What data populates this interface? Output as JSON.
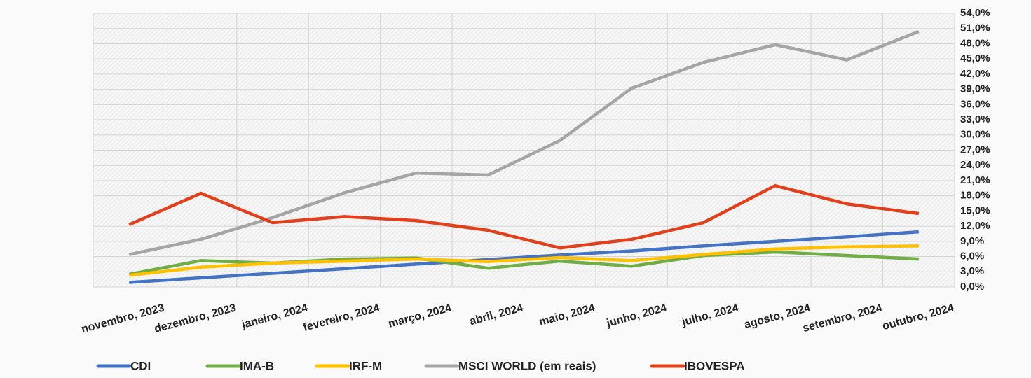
{
  "chart_data": {
    "type": "line",
    "categories": [
      "novembro, 2023",
      "dezembro, 2023",
      "janeiro, 2024",
      "fevereiro, 2024",
      "março, 2024",
      "abril, 2024",
      "maio, 2024",
      "junho, 2024",
      "julho, 2024",
      "agosto, 2024",
      "setembro, 2024",
      "outubro, 2024"
    ],
    "series": [
      {
        "name": "CDI",
        "color": "#4472c4",
        "values": [
          0.9,
          1.8,
          2.7,
          3.6,
          4.5,
          5.4,
          6.3,
          7.1,
          8.1,
          9.0,
          9.9,
          10.9
        ]
      },
      {
        "name": "IMA-B",
        "color": "#70ad47",
        "values": [
          2.5,
          5.2,
          4.7,
          5.5,
          5.7,
          3.7,
          5.1,
          4.1,
          6.2,
          6.9,
          6.2,
          5.5
        ]
      },
      {
        "name": "IRF-M",
        "color": "#ffc000",
        "values": [
          2.3,
          3.9,
          4.7,
          5.1,
          5.5,
          5.0,
          5.8,
          5.2,
          6.4,
          7.5,
          7.9,
          8.1
        ]
      },
      {
        "name": "MSCI WORLD (em reais)",
        "color": "#a5a5a5",
        "values": [
          6.4,
          9.4,
          13.7,
          18.6,
          22.5,
          22.1,
          28.9,
          39.2,
          44.3,
          47.8,
          44.8,
          50.4
        ]
      },
      {
        "name": "IBOVESPA",
        "color": "#e2401c",
        "values": [
          12.3,
          18.5,
          12.7,
          13.9,
          13.1,
          11.2,
          7.7,
          9.4,
          12.7,
          20.0,
          16.4,
          14.5
        ]
      }
    ],
    "ylim": [
      0,
      54
    ],
    "yticks": [
      {
        "value": 0,
        "label": "0,0%"
      },
      {
        "value": 3,
        "label": "3,0%"
      },
      {
        "value": 6,
        "label": "6,0%"
      },
      {
        "value": 9,
        "label": "9,0%"
      },
      {
        "value": 12,
        "label": "12,0%"
      },
      {
        "value": 15,
        "label": "15,0%"
      },
      {
        "value": 18,
        "label": "18,0%"
      },
      {
        "value": 21,
        "label": "21,0%"
      },
      {
        "value": 24,
        "label": "24,0%"
      },
      {
        "value": 27,
        "label": "27,0%"
      },
      {
        "value": 30,
        "label": "30,0%"
      },
      {
        "value": 33,
        "label": "33,0%"
      },
      {
        "value": 36,
        "label": "36,0%"
      },
      {
        "value": 39,
        "label": "39,0%"
      },
      {
        "value": 42,
        "label": "42,0%"
      },
      {
        "value": 45,
        "label": "45,0%"
      },
      {
        "value": 48,
        "label": "48,0%"
      },
      {
        "value": 51,
        "label": "51,0%"
      },
      {
        "value": 54,
        "label": "54,0%"
      }
    ],
    "y_axis_side": "right",
    "grid": true,
    "legend": "bottom"
  }
}
